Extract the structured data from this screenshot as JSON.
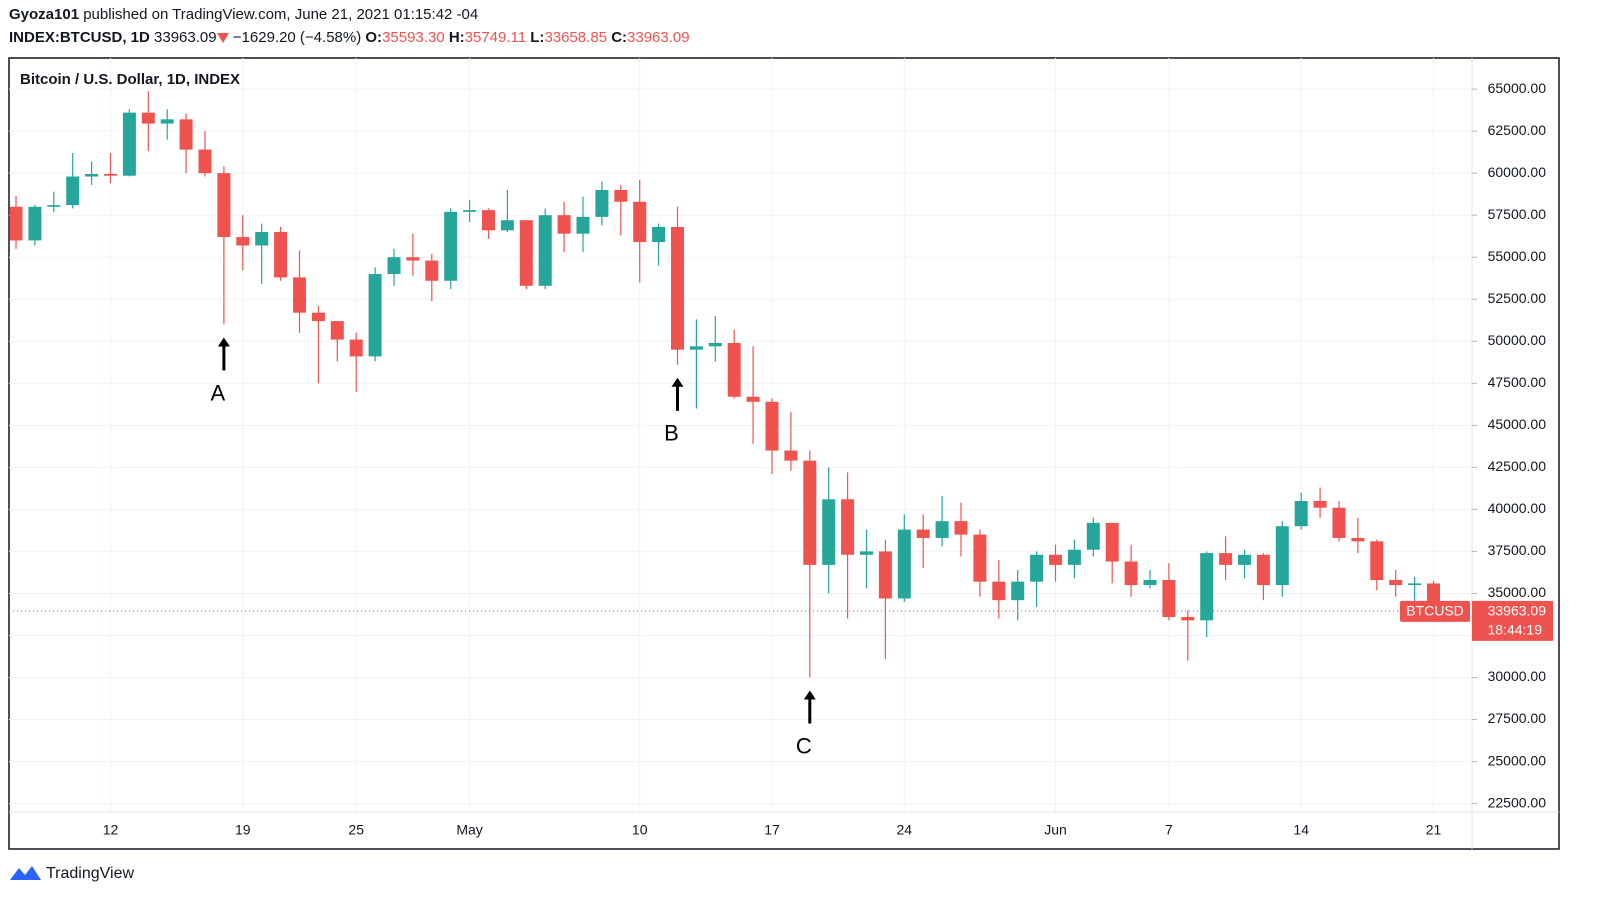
{
  "header": {
    "author": "Gyoza101",
    "published": "published on TradingView.com, June 21, 2021 01:15:42 -04",
    "symbol": "INDEX:BTCUSD, 1D",
    "price": "33963.09",
    "change": "−1629.20 (−4.58%)",
    "ohlc": [
      {
        "key": "O:",
        "value": "35593.30"
      },
      {
        "key": "H:",
        "value": "35749.11"
      },
      {
        "key": "L:",
        "value": "33658.85"
      },
      {
        "key": "C:",
        "value": "33963.09"
      }
    ]
  },
  "brand": "TradingView",
  "chart_data": {
    "type": "candlestick",
    "title": "Bitcoin / U.S. Dollar, 1D, INDEX",
    "up_color": "#26a69a",
    "down_color": "#ef5350",
    "grid": true,
    "categories": [
      null,
      null,
      null,
      null,
      null,
      "12",
      null,
      null,
      null,
      null,
      null,
      null,
      "19",
      null,
      null,
      null,
      null,
      null,
      "25",
      null,
      null,
      null,
      null,
      null,
      "May",
      null,
      null,
      null,
      null,
      null,
      null,
      null,
      null,
      "10",
      null,
      null,
      null,
      null,
      null,
      null,
      "17",
      null,
      null,
      null,
      null,
      null,
      null,
      "24",
      null,
      null,
      null,
      null,
      null,
      null,
      null,
      "Jun",
      null,
      null,
      null,
      null,
      null,
      "7",
      null,
      null,
      null,
      null,
      null,
      null,
      "14",
      null,
      null,
      null,
      null,
      null,
      null,
      "21"
    ],
    "open": [
      58000,
      56000,
      58000,
      58100,
      59800,
      59950,
      59850,
      63600,
      62950,
      63200,
      61400,
      60000,
      56200,
      55700,
      56500,
      53800,
      51700,
      51200,
      50100,
      49100,
      54000,
      55000,
      54800,
      53600,
      57700,
      57800,
      56600,
      57200,
      53300,
      57500,
      56400,
      57400,
      59000,
      58300,
      55900,
      56800,
      49500,
      49700,
      49900,
      46700,
      46400,
      43500,
      42900,
      36700,
      40600,
      37300,
      37500,
      34700,
      38800,
      38300,
      39300,
      38500,
      35700,
      34600,
      35700,
      37300,
      36700,
      37600,
      39200,
      36900,
      35500,
      35800,
      33600,
      33400,
      37400,
      36700,
      37300,
      35500,
      39000,
      40500,
      40100,
      38300,
      38100,
      35800,
      35500,
      35593.3
    ],
    "high": [
      58650,
      58100,
      58900,
      61200,
      60700,
      61200,
      63800,
      64870,
      63800,
      63550,
      62500,
      60400,
      57500,
      57000,
      56800,
      55400,
      52100,
      51200,
      50500,
      54400,
      55500,
      56400,
      55200,
      57900,
      58400,
      57900,
      59000,
      57200,
      57900,
      58300,
      58600,
      59500,
      59300,
      59600,
      57000,
      58000,
      51300,
      51500,
      50700,
      49700,
      46600,
      45800,
      43500,
      42500,
      42200,
      38800,
      38200,
      39700,
      39700,
      40800,
      40400,
      38800,
      37000,
      36400,
      37500,
      37900,
      38200,
      39500,
      39200,
      37900,
      36400,
      36800,
      34000,
      37500,
      38400,
      37600,
      37400,
      39300,
      41000,
      41300,
      40500,
      39500,
      38200,
      36400,
      36000,
      35749.11
    ],
    "low": [
      55500,
      55700,
      57700,
      57900,
      59300,
      59400,
      59800,
      61300,
      62000,
      60000,
      59800,
      51000,
      54200,
      53400,
      53600,
      50500,
      47500,
      48800,
      47000,
      48800,
      53300,
      53900,
      52400,
      53100,
      57100,
      56100,
      56500,
      53100,
      53100,
      55300,
      55300,
      56900,
      56300,
      53500,
      54500,
      48600,
      46000,
      48800,
      46600,
      43900,
      42100,
      42300,
      30000,
      35000,
      33500,
      35300,
      31100,
      34500,
      36500,
      37800,
      37200,
      34800,
      33500,
      33400,
      34200,
      35700,
      35900,
      37200,
      35600,
      34800,
      35300,
      33400,
      31000,
      32400,
      35800,
      35900,
      34600,
      34800,
      38800,
      39500,
      38100,
      37400,
      35200,
      34800,
      33400,
      33658.85
    ],
    "close": [
      56000,
      58000,
      58100,
      59800,
      59950,
      59850,
      63600,
      62950,
      63200,
      61400,
      60000,
      56200,
      55700,
      56500,
      53800,
      51700,
      51200,
      50100,
      49100,
      54000,
      55000,
      54800,
      53600,
      57700,
      57800,
      56600,
      57200,
      53300,
      57500,
      56400,
      57400,
      59000,
      58300,
      55900,
      56800,
      49500,
      49700,
      49900,
      46700,
      46400,
      43500,
      42900,
      36700,
      40600,
      37300,
      37500,
      34700,
      38800,
      38300,
      39300,
      38500,
      35700,
      34600,
      35700,
      37300,
      36700,
      37600,
      39200,
      36900,
      35500,
      35800,
      33600,
      33400,
      37400,
      36700,
      37300,
      35500,
      39000,
      40500,
      40100,
      38300,
      38100,
      35800,
      35500,
      35600,
      33963.09
    ],
    "ylim": [
      22000,
      66850
    ],
    "yticks": [
      {
        "value": 22500,
        "label": "22500.00"
      },
      {
        "value": 25000,
        "label": "25000.00"
      },
      {
        "value": 27500,
        "label": "27500.00"
      },
      {
        "value": 30000,
        "label": "30000.00"
      },
      {
        "value": 32500,
        "label": "32500.00"
      },
      {
        "value": 35000,
        "label": "35000.00"
      },
      {
        "value": 37500,
        "label": "37500.00"
      },
      {
        "value": 40000,
        "label": "40000.00"
      },
      {
        "value": 42500,
        "label": "42500.00"
      },
      {
        "value": 45000,
        "label": "45000.00"
      },
      {
        "value": 47500,
        "label": "47500.00"
      },
      {
        "value": 50000,
        "label": "50000.00"
      },
      {
        "value": 52500,
        "label": "52500.00"
      },
      {
        "value": 55000,
        "label": "55000.00"
      },
      {
        "value": 57500,
        "label": "57500.00"
      },
      {
        "value": 60000,
        "label": "60000.00"
      },
      {
        "value": 62500,
        "label": "62500.00"
      },
      {
        "value": 65000,
        "label": "65000.00"
      }
    ],
    "annotations": [
      "A",
      "B",
      "C"
    ],
    "last_price": {
      "symbol": "BTCUSD",
      "value": 33963.09,
      "countdown": "18:44:19"
    }
  }
}
